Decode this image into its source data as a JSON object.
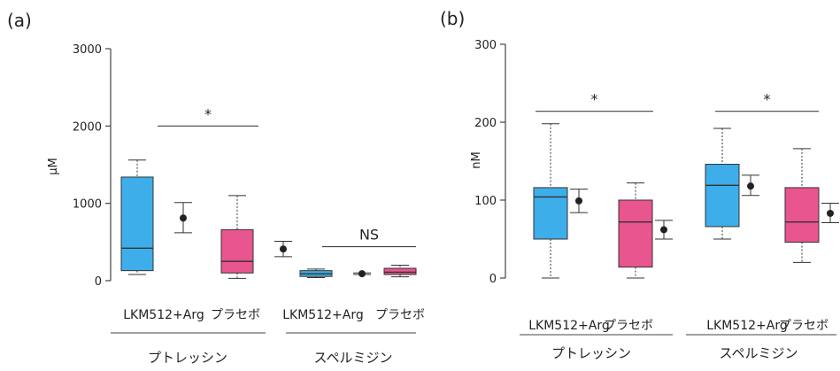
{
  "panels": [
    {
      "label": "(a)",
      "ylabel": "μM",
      "groups": [
        "プトレッシン",
        "スペルミジン"
      ]
    },
    {
      "label": "(b)",
      "ylabel": "nM",
      "groups": [
        "プトレッシン",
        "スペルミジン"
      ]
    }
  ],
  "colors": {
    "treatment": "#3daee9",
    "placebo": "#e8558f",
    "axis": "#444444",
    "point": "#222222"
  },
  "chart_data": [
    {
      "type": "box",
      "title": "(a)",
      "ylabel": "μM",
      "ylim": [
        0,
        3000
      ],
      "yticks": [
        0,
        1000,
        2000,
        3000
      ],
      "categories": [
        "LKM512+Arg",
        "プラセボ",
        "LKM512+Arg",
        "プラセボ"
      ],
      "groups": [
        "プトレッシン",
        "スペルミジン"
      ],
      "boxes": [
        {
          "whisker_low": 80,
          "q1": 130,
          "median": 420,
          "q3": 1340,
          "whisker_high": 1560,
          "mean": 810,
          "mean_low": 620,
          "mean_high": 1010
        },
        {
          "whisker_low": 30,
          "q1": 100,
          "median": 250,
          "q3": 660,
          "whisker_high": 1100,
          "mean": 410,
          "mean_low": 310,
          "mean_high": 510
        },
        {
          "whisker_low": 40,
          "q1": 55,
          "median": 90,
          "q3": 130,
          "whisker_high": 150,
          "mean": 90,
          "mean_low": 80,
          "mean_high": 100
        },
        {
          "whisker_low": 50,
          "q1": 80,
          "median": 110,
          "q3": 160,
          "whisker_high": 200,
          "mean": null,
          "mean_low": null,
          "mean_high": null
        }
      ],
      "significance": [
        {
          "from": 0,
          "to": 1,
          "value": 2000,
          "label": "*"
        },
        {
          "from": 2,
          "to": 3,
          "value": 440,
          "label": "NS"
        }
      ]
    },
    {
      "type": "box",
      "title": "(b)",
      "ylabel": "nM",
      "ylim": [
        0,
        300
      ],
      "yticks": [
        0,
        100,
        200,
        300
      ],
      "categories": [
        "LKM512+Arg",
        "プラセボ",
        "LKM512+Arg",
        "プラセボ"
      ],
      "groups": [
        "プトレッシン",
        "スペルミジン"
      ],
      "boxes": [
        {
          "whisker_low": 0,
          "q1": 50,
          "median": 104,
          "q3": 116,
          "whisker_high": 198,
          "mean": 99,
          "mean_low": 84,
          "mean_high": 114
        },
        {
          "whisker_low": 0,
          "q1": 14,
          "median": 72,
          "q3": 100,
          "whisker_high": 122,
          "mean": 62,
          "mean_low": 50,
          "mean_high": 74
        },
        {
          "whisker_low": 50,
          "q1": 66,
          "median": 119,
          "q3": 146,
          "whisker_high": 192,
          "mean": 118,
          "mean_low": 106,
          "mean_high": 132
        },
        {
          "whisker_low": 20,
          "q1": 46,
          "median": 72,
          "q3": 116,
          "whisker_high": 166,
          "mean": 83,
          "mean_low": 71,
          "mean_high": 96
        }
      ],
      "significance": [
        {
          "from": 0,
          "to": 1,
          "value": 214,
          "label": "*"
        },
        {
          "from": 2,
          "to": 3,
          "value": 214,
          "label": "*"
        }
      ]
    }
  ]
}
